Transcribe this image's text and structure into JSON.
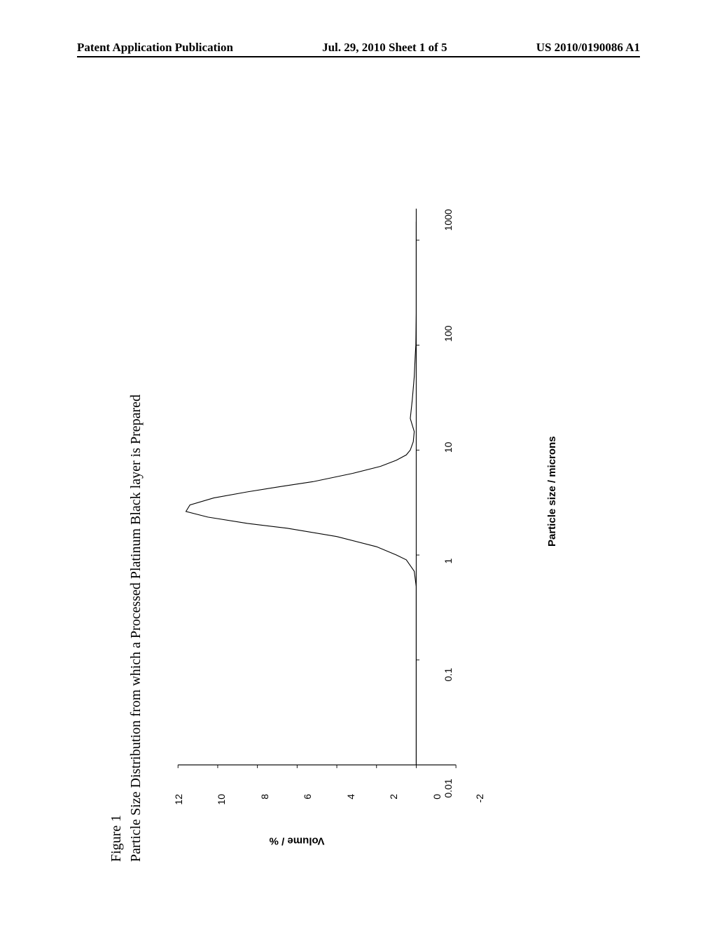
{
  "header": {
    "left": "Patent Application Publication",
    "center": "Jul. 29, 2010  Sheet 1 of 5",
    "right": "US 2010/0190086 A1"
  },
  "figure": {
    "label": "Figure 1",
    "title": "Particle Size Distribution from which a Processed Platinum Black layer is Prepared",
    "chart": {
      "type": "line",
      "xlabel": "Particle size / microns",
      "ylabel": "Volume / %",
      "xscale": "log",
      "xlim": [
        0.01,
        2000
      ],
      "ylim": [
        -2,
        12
      ],
      "yticks": [
        -2,
        0,
        2,
        4,
        6,
        8,
        10,
        12
      ],
      "xticks": [
        0.01,
        0.1,
        1,
        10,
        100,
        1000
      ],
      "xtick_labels": [
        "0.01",
        "0.1",
        "1",
        "10",
        "100",
        "1000"
      ],
      "line_color": "#000000",
      "line_width": 1.2,
      "background_color": "#ffffff",
      "axis_color": "#000000",
      "tick_fontsize": 14,
      "label_fontsize": 15,
      "data_points": [
        [
          0.01,
          0
        ],
        [
          0.5,
          0
        ],
        [
          0.7,
          0.1
        ],
        [
          0.9,
          0.5
        ],
        [
          1.0,
          1.0
        ],
        [
          1.2,
          2.0
        ],
        [
          1.5,
          4.0
        ],
        [
          1.8,
          6.5
        ],
        [
          2.0,
          8.5
        ],
        [
          2.3,
          10.5
        ],
        [
          2.6,
          11.6
        ],
        [
          3.0,
          11.4
        ],
        [
          3.5,
          10.2
        ],
        [
          4.0,
          8.5
        ],
        [
          4.5,
          6.8
        ],
        [
          5.0,
          5.2
        ],
        [
          6.0,
          3.2
        ],
        [
          7.0,
          1.8
        ],
        [
          8.0,
          1.0
        ],
        [
          9.0,
          0.5
        ],
        [
          10.0,
          0.3
        ],
        [
          12.0,
          0.15
        ],
        [
          15.0,
          0.1
        ],
        [
          20.0,
          0.3
        ],
        [
          30.0,
          0.2
        ],
        [
          50.0,
          0.1
        ],
        [
          80.0,
          0.05
        ],
        [
          100.0,
          0.02
        ],
        [
          200.0,
          0
        ],
        [
          1500.0,
          0
        ]
      ]
    }
  }
}
